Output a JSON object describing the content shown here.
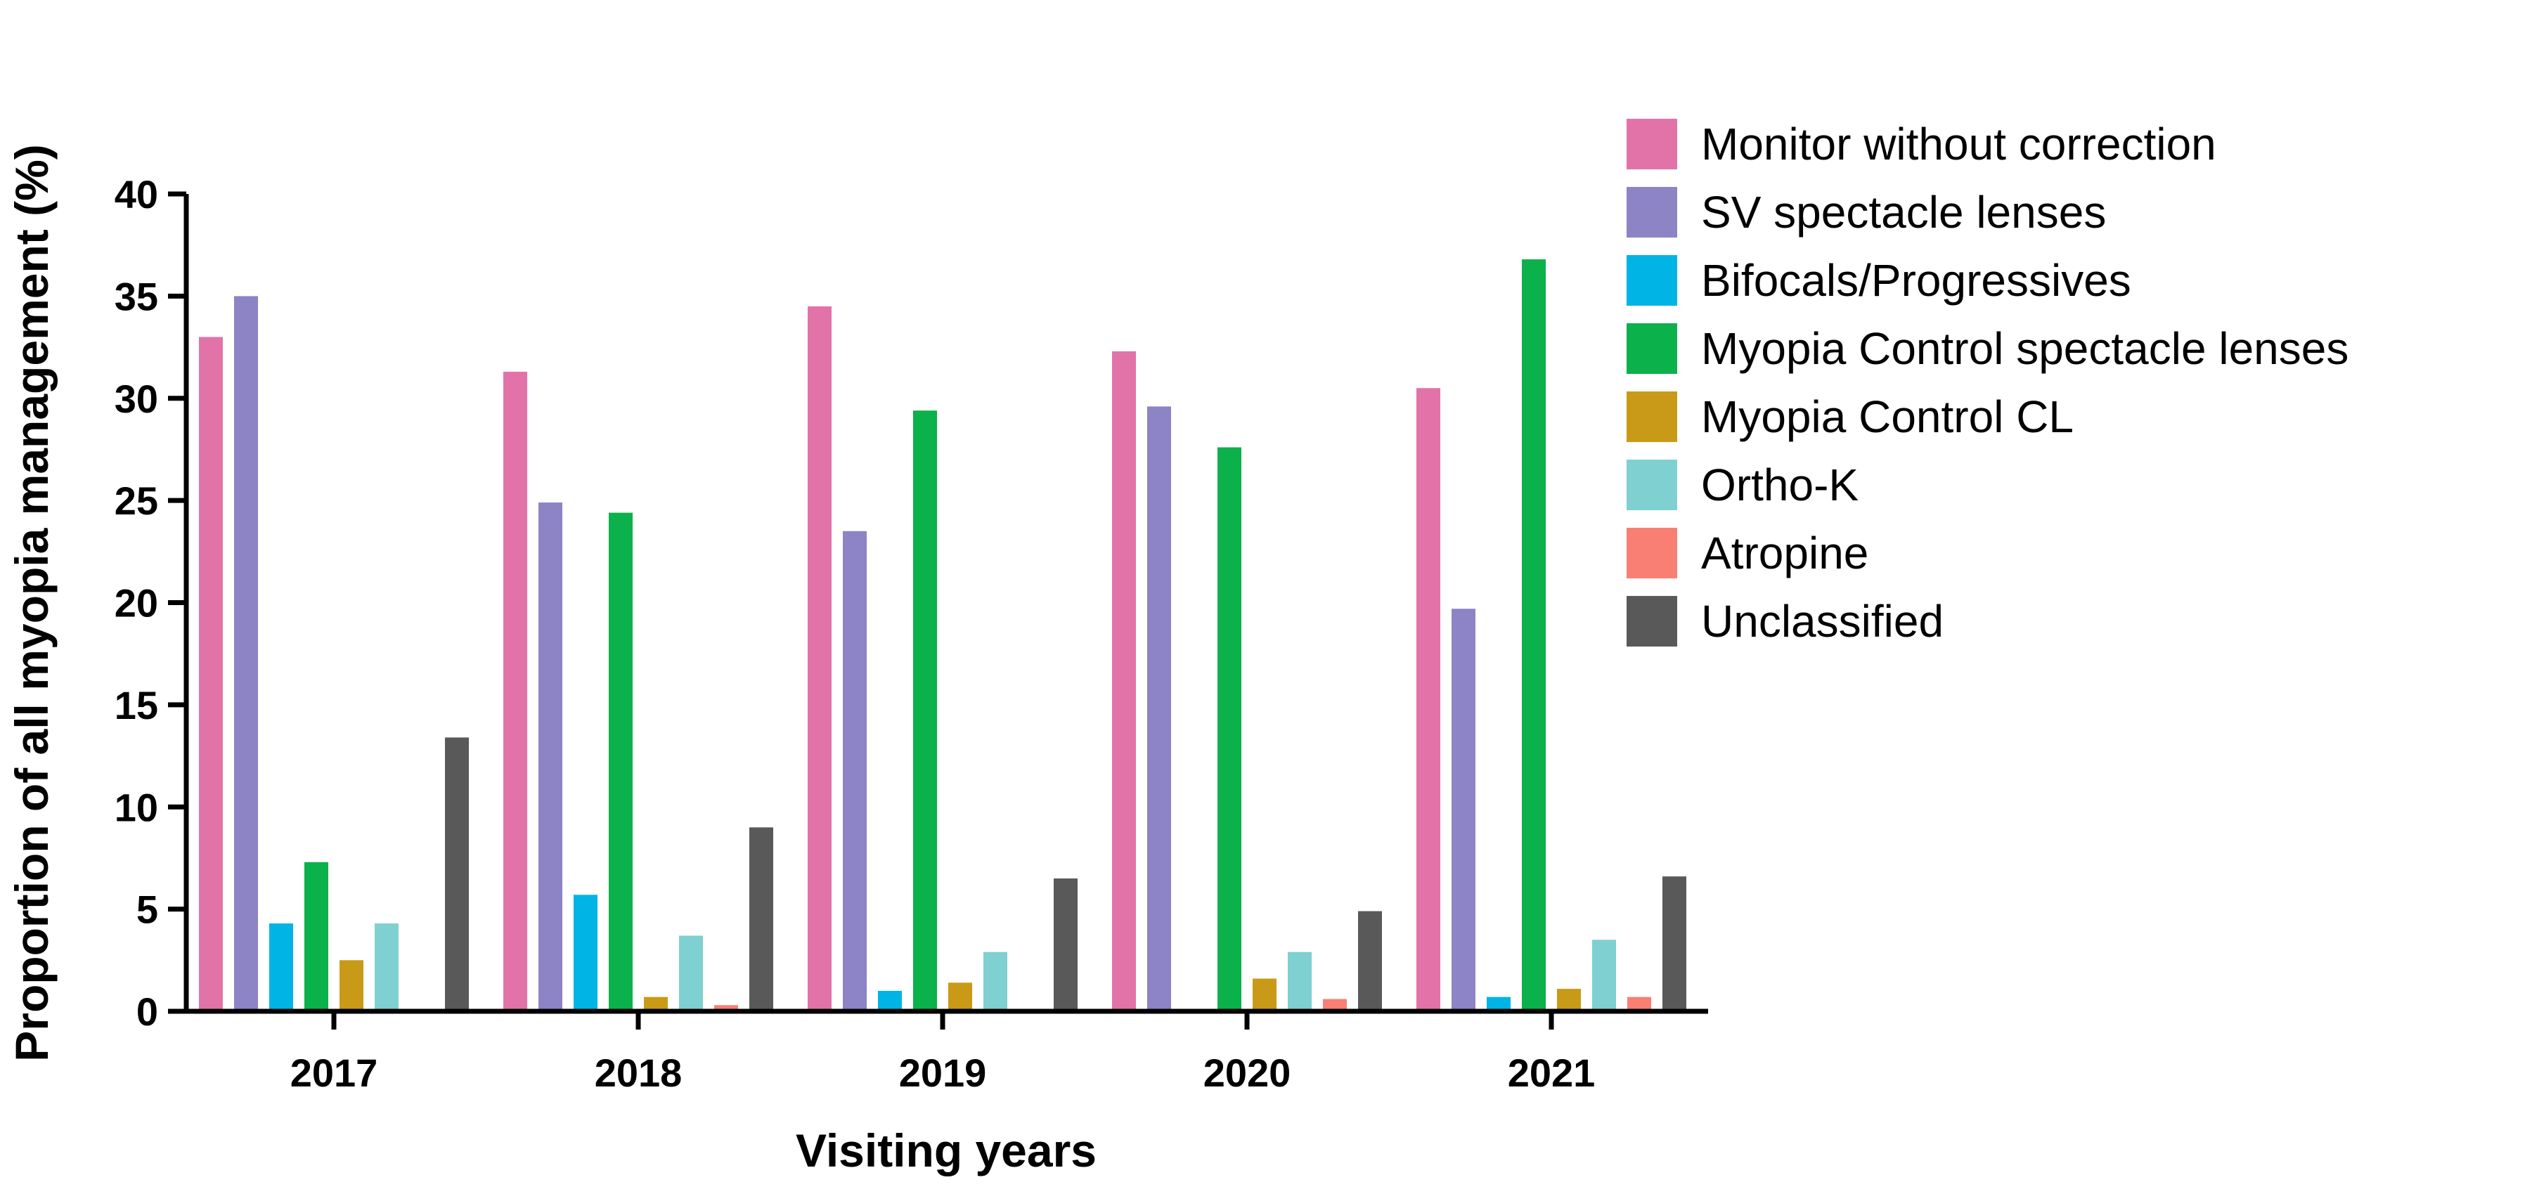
{
  "chart_data": {
    "type": "bar",
    "title": "",
    "xlabel": "Visiting years",
    "ylabel": "Proportion of all myopia management (%)",
    "ylim": [
      0,
      40
    ],
    "yticks": [
      0,
      5,
      10,
      15,
      20,
      25,
      30,
      35,
      40
    ],
    "categories": [
      "2017",
      "2018",
      "2019",
      "2020",
      "2021"
    ],
    "legend_position": "right",
    "series": [
      {
        "name": "Monitor without correction",
        "color": "#e273a8",
        "values": [
          33.0,
          31.3,
          34.5,
          32.3,
          30.5
        ]
      },
      {
        "name": "SV spectacle lenses",
        "color": "#8c84c5",
        "values": [
          35.0,
          24.9,
          23.5,
          29.6,
          19.7
        ]
      },
      {
        "name": "Bifocals/Progressives",
        "color": "#00b4e6",
        "values": [
          4.3,
          5.7,
          1.0,
          0,
          0.7
        ]
      },
      {
        "name": "Myopia Control spectacle lenses",
        "color": "#0bb14a",
        "values": [
          7.3,
          24.4,
          29.4,
          27.6,
          36.8
        ]
      },
      {
        "name": "Myopia Control CL",
        "color": "#c99a17",
        "values": [
          2.5,
          0.7,
          1.4,
          1.6,
          1.1
        ]
      },
      {
        "name": "Ortho-K",
        "color": "#7fd0d0",
        "values": [
          4.3,
          3.7,
          2.9,
          2.9,
          3.5
        ]
      },
      {
        "name": "Atropine",
        "color": "#f97f74",
        "values": [
          0,
          0.3,
          0,
          0.6,
          0.7
        ]
      },
      {
        "name": "Unclassified",
        "color": "#595959",
        "values": [
          13.4,
          9.0,
          6.5,
          4.9,
          6.6
        ]
      }
    ]
  }
}
